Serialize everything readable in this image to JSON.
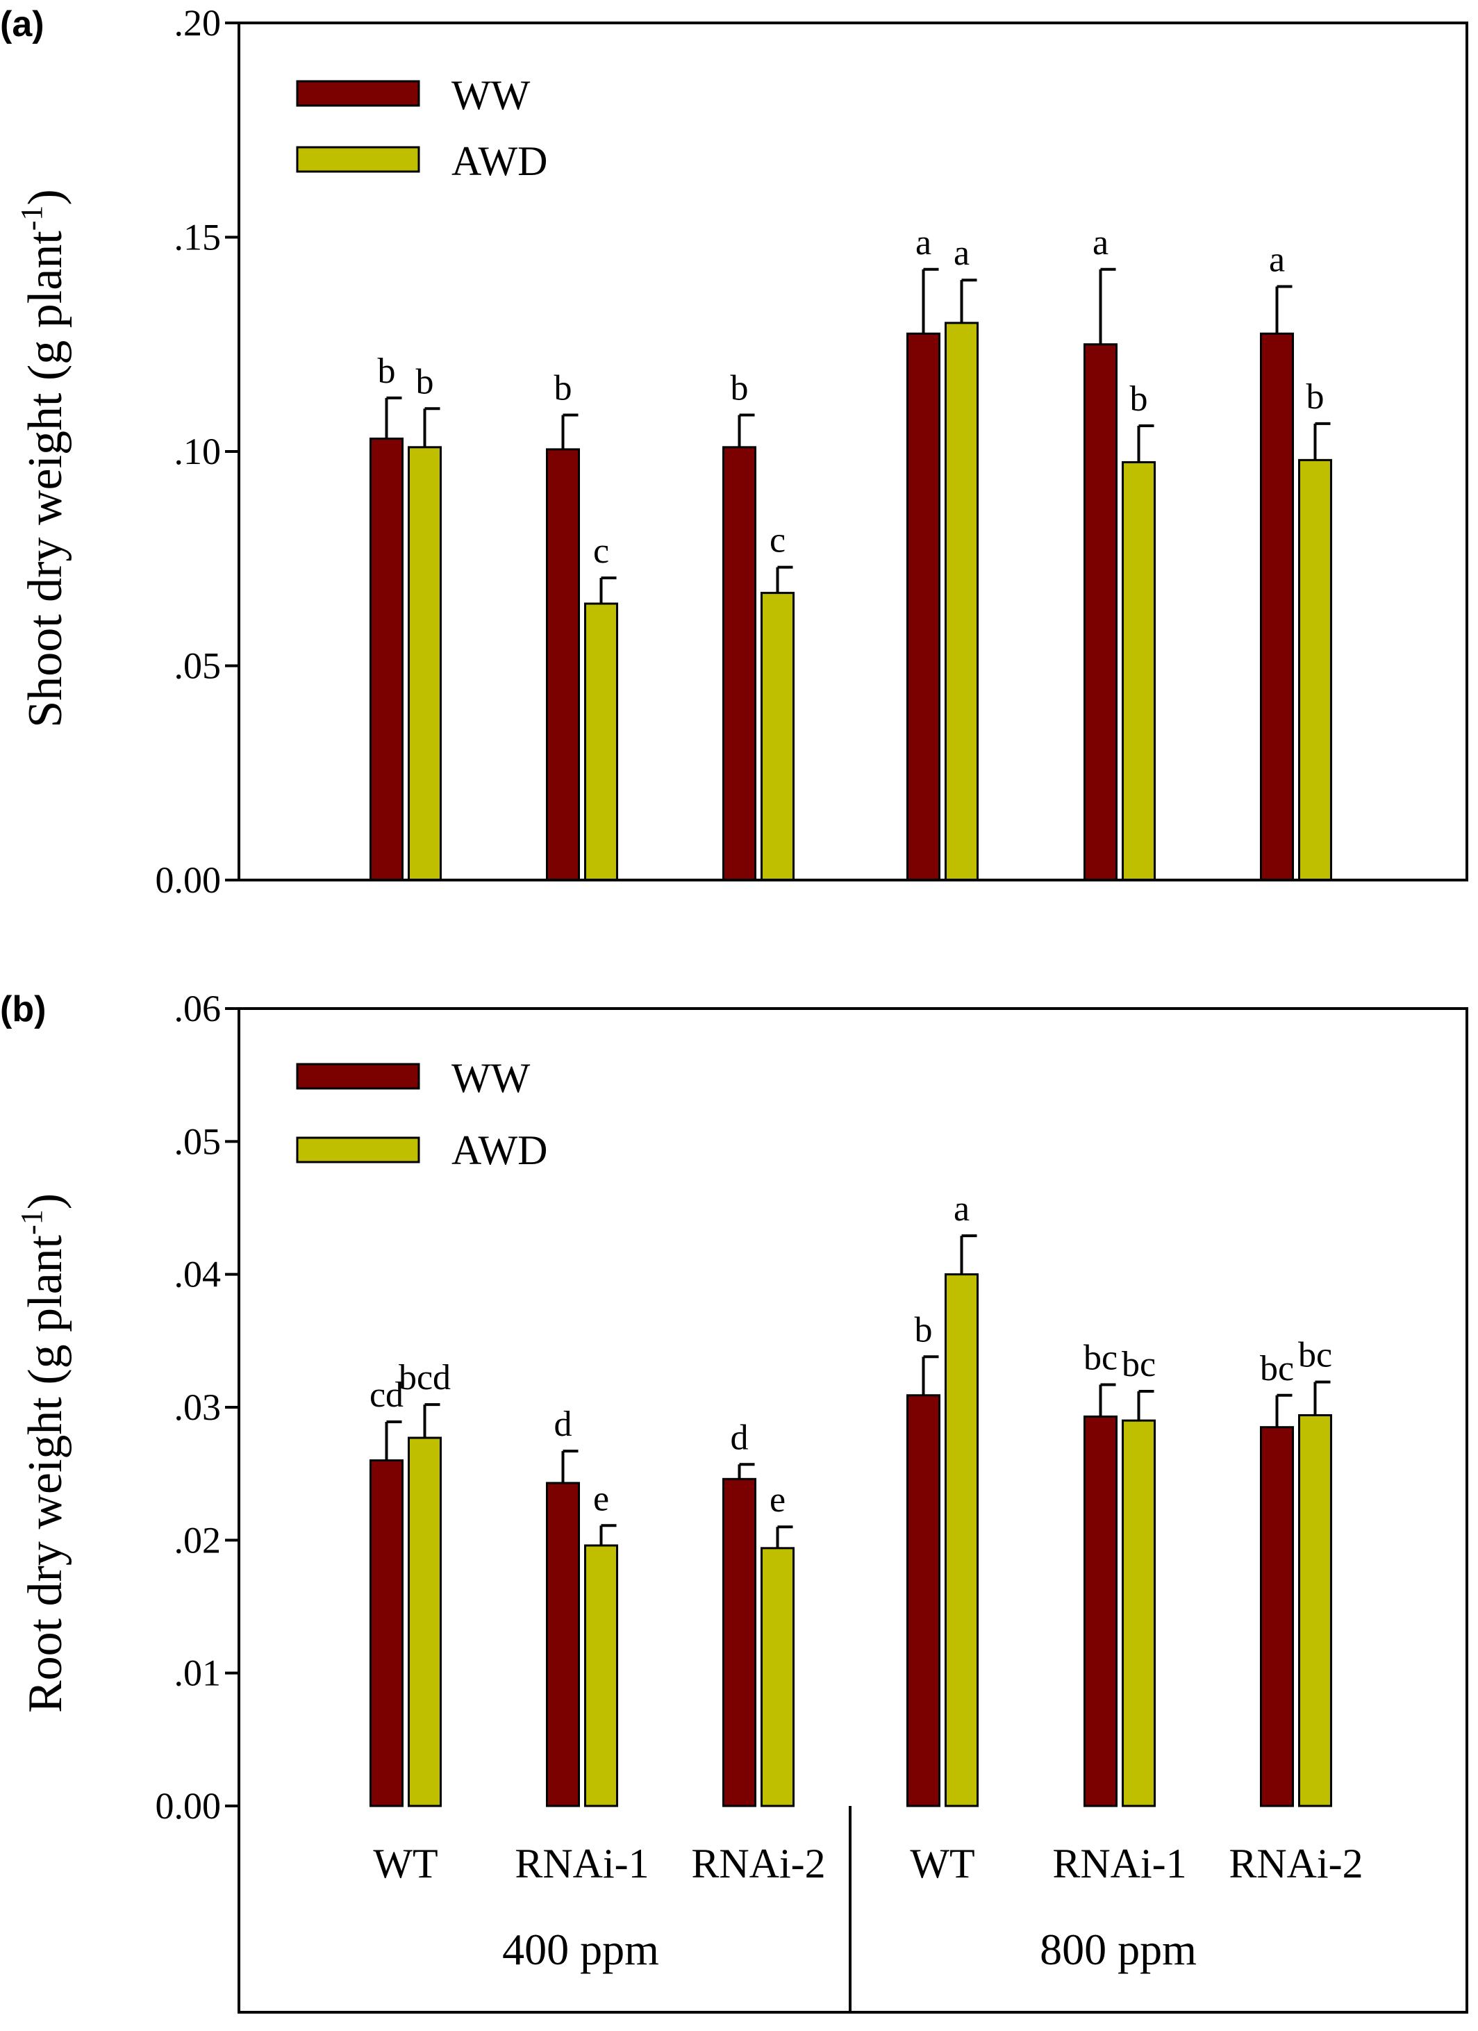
{
  "colors": {
    "WW": "#7B0000",
    "AWD": "#BFBF00"
  },
  "chart_data": [
    {
      "type": "bar",
      "panel_label": "(a)",
      "ylabel": "Shoot dry weight (g plant",
      "ylabel_superscript": "-1",
      "ylabel_close": ")",
      "ylim": [
        0,
        0.2
      ],
      "yticks": [
        {
          "value": 0,
          "label": "0.00"
        },
        {
          "value": 0.05,
          "label": ".05"
        },
        {
          "value": 0.1,
          "label": ".10"
        },
        {
          "value": 0.15,
          "label": ".15"
        },
        {
          "value": 0.2,
          "label": ".20"
        }
      ],
      "legend": {
        "position": "top-left",
        "entries": [
          "WW",
          "AWD"
        ]
      },
      "categories": [
        "WT",
        "RNAi-1",
        "RNAi-2",
        "WT",
        "RNAi-1",
        "RNAi-2"
      ],
      "series": [
        {
          "name": "WW",
          "values": [
            0.103,
            0.1005,
            0.101,
            0.1275,
            0.125,
            0.1275
          ],
          "errors": [
            0.0095,
            0.008,
            0.0075,
            0.015,
            0.0175,
            0.011
          ],
          "letters": [
            "b",
            "b",
            "b",
            "a",
            "a",
            "a"
          ]
        },
        {
          "name": "AWD",
          "values": [
            0.101,
            0.0645,
            0.067,
            0.13,
            0.0975,
            0.098
          ],
          "errors": [
            0.009,
            0.006,
            0.006,
            0.01,
            0.0085,
            0.0085
          ],
          "letters": [
            "b",
            "c",
            "c",
            "a",
            "b",
            "b"
          ]
        }
      ]
    },
    {
      "type": "bar",
      "panel_label": "(b)",
      "ylabel": "Root dry weight (g plant",
      "ylabel_superscript": "-1",
      "ylabel_close": ")",
      "ylim": [
        0,
        0.06
      ],
      "yticks": [
        {
          "value": 0,
          "label": "0.00"
        },
        {
          "value": 0.01,
          "label": ".01"
        },
        {
          "value": 0.02,
          "label": ".02"
        },
        {
          "value": 0.03,
          "label": ".03"
        },
        {
          "value": 0.04,
          "label": ".04"
        },
        {
          "value": 0.05,
          "label": ".05"
        },
        {
          "value": 0.06,
          "label": ".06"
        }
      ],
      "legend": {
        "position": "top-left",
        "entries": [
          "WW",
          "AWD"
        ]
      },
      "categories": [
        "WT",
        "RNAi-1",
        "RNAi-2",
        "WT",
        "RNAi-1",
        "RNAi-2"
      ],
      "groups": [
        {
          "label": "400 ppm",
          "categories": [
            "WT",
            "RNAi-1",
            "RNAi-2"
          ]
        },
        {
          "label": "800 ppm",
          "categories": [
            "WT",
            "RNAi-1",
            "RNAi-2"
          ]
        }
      ],
      "series": [
        {
          "name": "WW",
          "values": [
            0.026,
            0.0243,
            0.0246,
            0.0309,
            0.0293,
            0.0285
          ],
          "errors": [
            0.0029,
            0.0024,
            0.0011,
            0.0029,
            0.0024,
            0.0024
          ],
          "letters": [
            "cd",
            "d",
            "d",
            "b",
            "bc",
            "bc"
          ]
        },
        {
          "name": "AWD",
          "values": [
            0.0277,
            0.0196,
            0.0194,
            0.04,
            0.029,
            0.0294
          ],
          "errors": [
            0.0025,
            0.0015,
            0.0016,
            0.0029,
            0.0022,
            0.0025
          ],
          "letters": [
            "bcd",
            "e",
            "e",
            "a",
            "bc",
            "bc"
          ]
        }
      ]
    }
  ]
}
